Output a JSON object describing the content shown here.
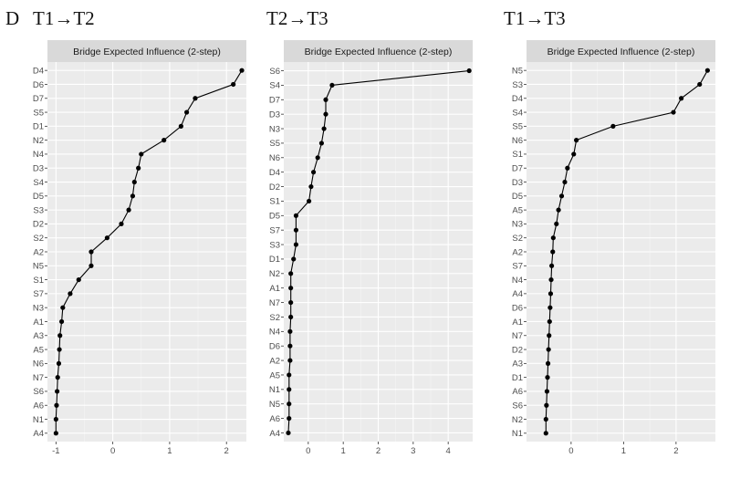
{
  "figure": {
    "panel_letter": "D"
  },
  "chart_data": [
    {
      "type": "line",
      "title": "T1→T2",
      "strip": "Bridge Expected Influence (2-step)",
      "xlim": [
        -1.15,
        2.35
      ],
      "xticks": [
        -1,
        0,
        1,
        2
      ],
      "categories": [
        "D4",
        "D6",
        "D7",
        "S5",
        "D1",
        "N2",
        "N4",
        "D3",
        "S4",
        "D5",
        "S3",
        "D2",
        "S2",
        "A2",
        "N5",
        "S1",
        "S7",
        "N3",
        "A1",
        "A3",
        "A5",
        "N6",
        "N7",
        "S6",
        "A6",
        "N1",
        "A4"
      ],
      "values": [
        2.27,
        2.12,
        1.45,
        1.3,
        1.2,
        0.9,
        0.5,
        0.45,
        0.38,
        0.35,
        0.28,
        0.15,
        -0.1,
        -0.38,
        -0.38,
        -0.6,
        -0.75,
        -0.88,
        -0.9,
        -0.93,
        -0.94,
        -0.95,
        -0.97,
        -0.98,
        -0.99,
        -1.0,
        -1.0
      ],
      "grid": true
    },
    {
      "type": "line",
      "title": "T2→T3",
      "strip": "Bridge Expected Influence (2-step)",
      "xlim": [
        -0.7,
        4.7
      ],
      "xticks": [
        0,
        1,
        2,
        3,
        4
      ],
      "categories": [
        "S6",
        "S4",
        "D7",
        "D3",
        "N3",
        "S5",
        "N6",
        "D4",
        "D2",
        "S1",
        "D5",
        "S7",
        "S3",
        "D1",
        "N2",
        "A1",
        "N7",
        "S2",
        "N4",
        "D6",
        "A2",
        "A5",
        "N1",
        "N5",
        "A6",
        "A4"
      ],
      "values": [
        4.6,
        0.68,
        0.5,
        0.5,
        0.45,
        0.38,
        0.27,
        0.15,
        0.08,
        0.02,
        -0.35,
        -0.35,
        -0.35,
        -0.42,
        -0.5,
        -0.5,
        -0.5,
        -0.5,
        -0.52,
        -0.52,
        -0.52,
        -0.55,
        -0.55,
        -0.55,
        -0.55,
        -0.57
      ],
      "grid": true
    },
    {
      "type": "line",
      "title": "T1→T3",
      "strip": "Bridge Expected Influence (2-step)",
      "xlim": [
        -0.85,
        2.75
      ],
      "xticks": [
        0,
        1,
        2
      ],
      "categories": [
        "N5",
        "S3",
        "D4",
        "S4",
        "S5",
        "N6",
        "S1",
        "D7",
        "D3",
        "D5",
        "A5",
        "N3",
        "S2",
        "A2",
        "S7",
        "N4",
        "A4",
        "D6",
        "A1",
        "N7",
        "D2",
        "A3",
        "D1",
        "A6",
        "S6",
        "N2",
        "N1"
      ],
      "values": [
        2.6,
        2.45,
        2.1,
        1.95,
        0.8,
        0.1,
        0.05,
        -0.07,
        -0.12,
        -0.18,
        -0.24,
        -0.28,
        -0.34,
        -0.35,
        -0.37,
        -0.38,
        -0.39,
        -0.4,
        -0.41,
        -0.42,
        -0.43,
        -0.44,
        -0.45,
        -0.46,
        -0.47,
        -0.48,
        -0.48
      ],
      "grid": true
    }
  ]
}
